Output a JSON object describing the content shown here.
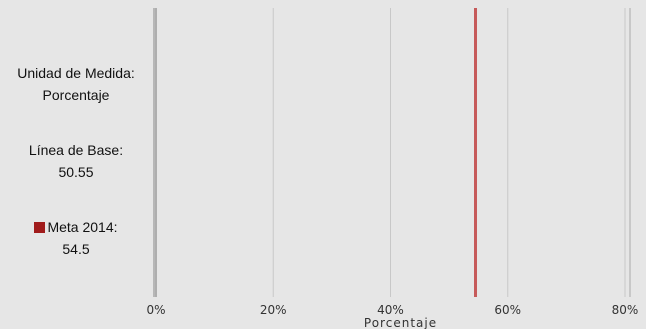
{
  "legend": {
    "unit_label": "Unidad de Medida:",
    "unit_value": "Porcentaje",
    "base_label": "Línea de Base:",
    "base_value": "50.55",
    "meta_label": "Meta 2014:",
    "meta_value": "54.5",
    "meta_color": "#a01b1b"
  },
  "chart_data": {
    "type": "bar",
    "orientation": "horizontal",
    "xlabel": "Porcentaje",
    "xlim": [
      0,
      80
    ],
    "ticks": [
      0,
      20,
      40,
      60,
      80
    ],
    "tick_labels": [
      "0%",
      "20%",
      "40%",
      "60%",
      "80%"
    ],
    "grid": true,
    "series": [
      {
        "name": "Meta 2014",
        "values": [
          54.5
        ],
        "color": "#c65a5a"
      }
    ]
  }
}
